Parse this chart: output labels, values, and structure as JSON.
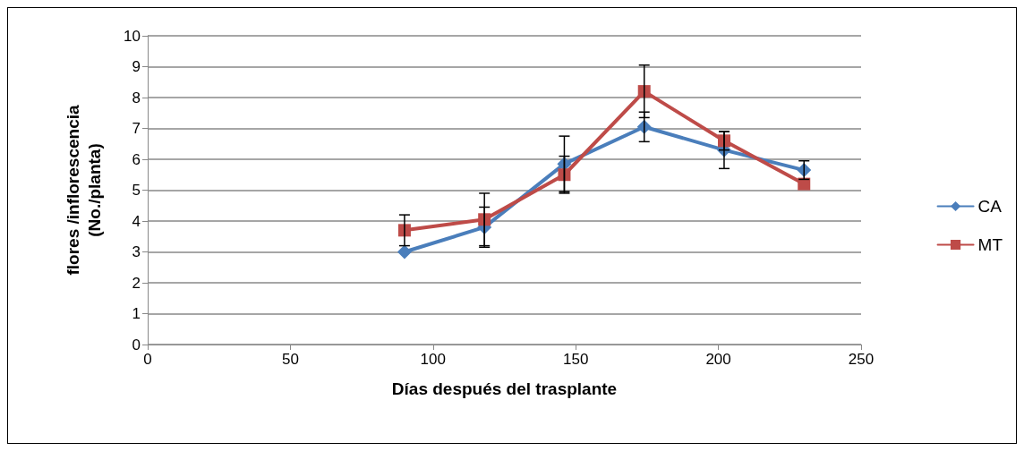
{
  "chart_data": {
    "type": "line",
    "xlabel": "Días después del trasplante",
    "ylabel": "flores /inflorescencia\n(No./planta)",
    "x": [
      90,
      118,
      146,
      174,
      202,
      230
    ],
    "series": [
      {
        "name": "CA",
        "color": "#4a7ebb",
        "marker": "diamond",
        "values": [
          3.0,
          3.8,
          5.85,
          7.05,
          6.3,
          5.65
        ],
        "errors": [
          null,
          0.65,
          0.9,
          0.48,
          0.6,
          0.3
        ]
      },
      {
        "name": "MT",
        "color": "#be4b48",
        "marker": "square",
        "values": [
          3.7,
          4.05,
          5.5,
          8.2,
          6.6,
          5.2
        ],
        "errors": [
          0.5,
          0.85,
          0.6,
          0.85,
          0.3,
          null
        ]
      }
    ],
    "xlim": [
      0,
      250
    ],
    "xticks": [
      0,
      50,
      100,
      150,
      200,
      250
    ],
    "ylim": [
      0,
      10
    ],
    "yticks": [
      0,
      1,
      2,
      3,
      4,
      5,
      6,
      7,
      8,
      9,
      10
    ],
    "grid": "y",
    "legend": "right"
  }
}
